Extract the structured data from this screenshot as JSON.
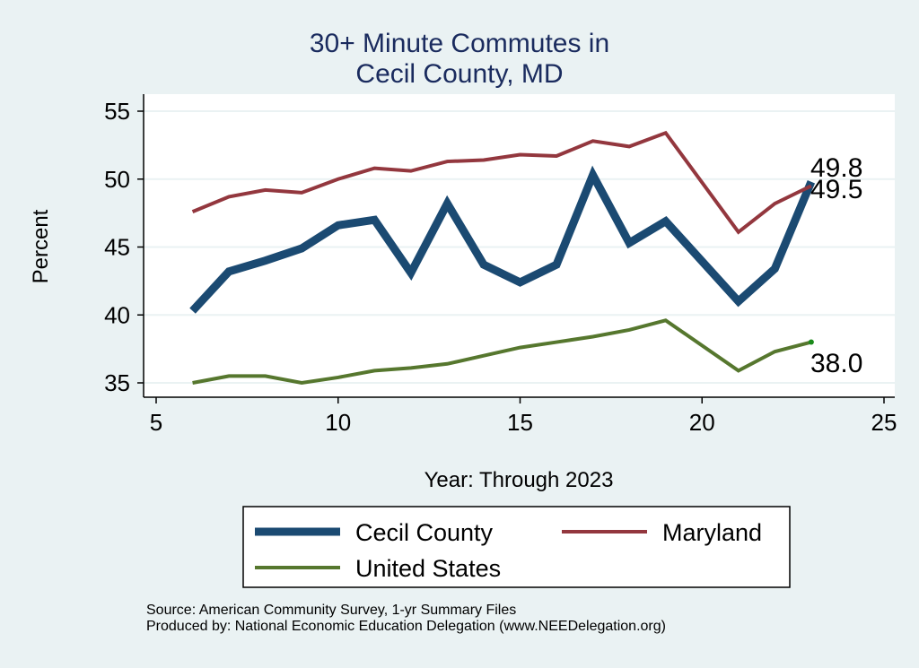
{
  "chart_data": {
    "type": "line",
    "title": [
      "30+ Minute Commutes in",
      "Cecil County, MD"
    ],
    "xlabel": "Year: Through 2023",
    "ylabel": "Percent",
    "xlim": [
      5,
      25
    ],
    "ylim": [
      35,
      55
    ],
    "xticks": [
      5,
      10,
      15,
      20,
      25
    ],
    "yticks": [
      35,
      40,
      45,
      50,
      55
    ],
    "grid": true,
    "legend_position": "bottom",
    "series": [
      {
        "name": "Cecil County",
        "color": "#1b4a72",
        "x": [
          6,
          7,
          8,
          9,
          10,
          11,
          12,
          13,
          14,
          15,
          16,
          17,
          18,
          19,
          21,
          22,
          23
        ],
        "values": [
          40.3,
          43.2,
          44.0,
          44.9,
          46.6,
          47.0,
          43.1,
          48.2,
          43.7,
          42.4,
          43.7,
          50.3,
          45.3,
          46.9,
          41.0,
          43.4,
          49.8
        ],
        "end_label": "49.8"
      },
      {
        "name": "Maryland",
        "color": "#93373e",
        "x": [
          6,
          7,
          8,
          9,
          10,
          11,
          12,
          13,
          14,
          15,
          16,
          17,
          18,
          19,
          21,
          22,
          23
        ],
        "values": [
          47.6,
          48.7,
          49.2,
          49.0,
          50.0,
          50.8,
          50.6,
          51.3,
          51.4,
          51.8,
          51.7,
          52.8,
          52.4,
          53.4,
          46.1,
          48.2,
          49.5
        ],
        "end_label": "49.5"
      },
      {
        "name": "United States",
        "color": "#56772e",
        "x": [
          6,
          7,
          8,
          9,
          10,
          11,
          12,
          13,
          14,
          15,
          16,
          17,
          18,
          19,
          21,
          22,
          23
        ],
        "values": [
          35.0,
          35.5,
          35.5,
          35.0,
          35.4,
          35.9,
          36.1,
          36.4,
          37.0,
          37.6,
          38.0,
          38.4,
          38.9,
          39.6,
          35.9,
          37.3,
          38.0
        ],
        "end_label": "38.0"
      }
    ]
  },
  "source": "Source: American Community Survey, 1-yr Summary Files",
  "produced_by": "Produced by: National Economic Education Delegation (www.NEEDelegation.org)"
}
